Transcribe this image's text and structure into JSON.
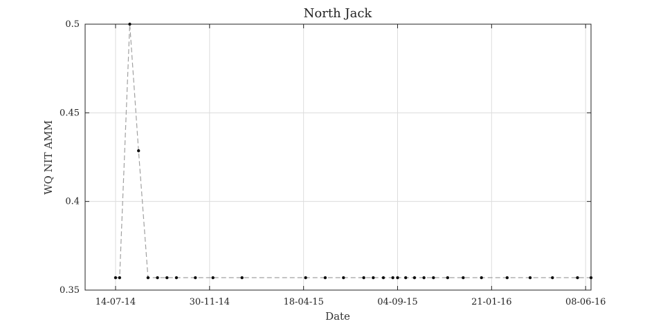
{
  "chart_data": {
    "type": "line",
    "title": "North Jack",
    "xlabel": "Date",
    "ylabel": "WQ NIT AMM",
    "x_tick_labels": [
      "14-07-14",
      "30-11-14",
      "18-04-15",
      "04-09-15",
      "21-01-16",
      "08-06-16"
    ],
    "x_ticks": [
      "2014-07-14",
      "2014-11-30",
      "2015-04-18",
      "2015-09-04",
      "2016-01-21",
      "2016-06-08"
    ],
    "xlim": [
      "2014-05-30",
      "2016-06-16"
    ],
    "ylim": [
      0.35,
      0.5
    ],
    "y_ticks": [
      0.35,
      0.4,
      0.45,
      0.5
    ],
    "y_tick_labels": [
      "0.35",
      "0.4",
      "0.45",
      "0.5"
    ],
    "grid": true,
    "series": [
      {
        "x": [
          "2014-07-14",
          "2014-07-20",
          "2014-08-04",
          "2014-08-17",
          "2014-08-31",
          "2014-09-14",
          "2014-09-28",
          "2014-10-12",
          "2014-11-09",
          "2014-12-05",
          "2015-01-17",
          "2015-04-21",
          "2015-05-20",
          "2015-06-16",
          "2015-07-16",
          "2015-07-30",
          "2015-08-14",
          "2015-08-28",
          "2015-09-04",
          "2015-09-16",
          "2015-09-29",
          "2015-10-13",
          "2015-10-27",
          "2015-11-17",
          "2015-12-10",
          "2016-01-06",
          "2016-02-13",
          "2016-03-18",
          "2016-04-20",
          "2016-05-27",
          "2016-06-16"
        ],
        "values": [
          0.357,
          0.357,
          0.5,
          0.4286,
          0.357,
          0.357,
          0.357,
          0.357,
          0.357,
          0.357,
          0.357,
          0.357,
          0.357,
          0.357,
          0.357,
          0.357,
          0.357,
          0.357,
          0.357,
          0.357,
          0.357,
          0.357,
          0.357,
          0.357,
          0.357,
          0.357,
          0.357,
          0.357,
          0.357,
          0.357,
          0.357
        ]
      }
    ]
  }
}
